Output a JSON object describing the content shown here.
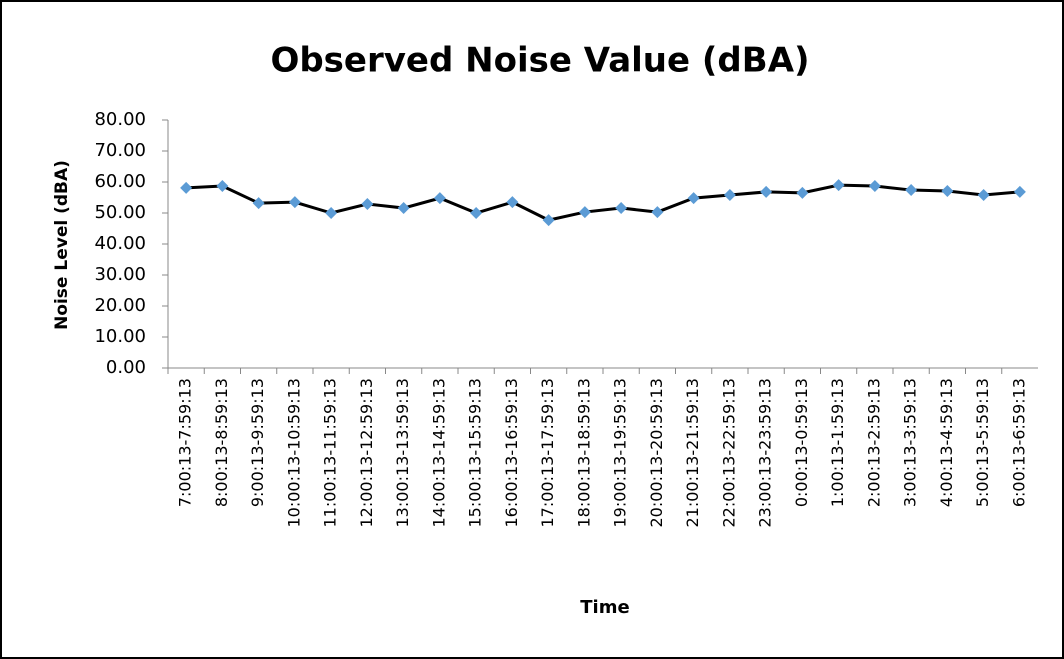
{
  "chart_data": {
    "type": "line",
    "title": "Observed Noise Value (dBA)",
    "x_label": "Time",
    "y_label": "Noise Level (dBA)",
    "categories": [
      "7:00:13-7:59:13",
      "8:00:13-8:59:13",
      "9:00:13-9:59:13",
      "10:00:13-10:59:13",
      "11:00:13-11:59:13",
      "12:00:13-12:59:13",
      "13:00:13-13:59:13",
      "14:00:13-14:59:13",
      "15:00:13-15:59:13",
      "16:00:13-16:59:13",
      "17:00:13-17:59:13",
      "18:00:13-18:59:13",
      "19:00:13-19:59:13",
      "20:00:13-20:59:13",
      "21:00:13-21:59:13",
      "22:00:13-22:59:13",
      "23:00:13-23:59:13",
      "0:00:13-0:59:13",
      "1:00:13-1:59:13",
      "2:00:13-2:59:13",
      "3:00:13-3:59:13",
      "4:00:13-4:59:13",
      "5:00:13-5:59:13",
      "6:00:13-6:59:13"
    ],
    "values": [
      58.1,
      58.7,
      53.2,
      53.5,
      50.0,
      52.9,
      51.6,
      54.8,
      50.0,
      53.5,
      47.7,
      50.3,
      51.6,
      50.3,
      54.8,
      55.8,
      56.8,
      56.5,
      59.0,
      58.7,
      57.4,
      57.1,
      55.8,
      56.8
    ],
    "line_color": "#000000",
    "marker_color": "#5b9bd5",
    "ylim": [
      0,
      80
    ],
    "yticks": [
      {
        "value": 0,
        "label": "0.00"
      },
      {
        "value": 10,
        "label": "10.00"
      },
      {
        "value": 20,
        "label": "20.00"
      },
      {
        "value": 30,
        "label": "30.00"
      },
      {
        "value": 40,
        "label": "40.00"
      },
      {
        "value": 50,
        "label": "50.00"
      },
      {
        "value": 60,
        "label": "60.00"
      },
      {
        "value": 70,
        "label": "70.00"
      },
      {
        "value": 80,
        "label": "80.00"
      }
    ]
  }
}
